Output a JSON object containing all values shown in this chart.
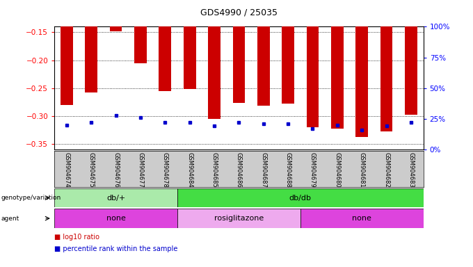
{
  "title": "GDS4990 / 25035",
  "samples": [
    "GSM904674",
    "GSM904675",
    "GSM904676",
    "GSM904677",
    "GSM904678",
    "GSM904684",
    "GSM904685",
    "GSM904686",
    "GSM904687",
    "GSM904688",
    "GSM904679",
    "GSM904680",
    "GSM904681",
    "GSM904682",
    "GSM904683"
  ],
  "log10_ratio": [
    -0.28,
    -0.258,
    -0.148,
    -0.205,
    -0.255,
    -0.252,
    -0.305,
    -0.277,
    -0.281,
    -0.278,
    -0.32,
    -0.322,
    -0.338,
    -0.327,
    -0.298
  ],
  "percentile": [
    20,
    22,
    28,
    26,
    22,
    22,
    19,
    22,
    21,
    21,
    17,
    20,
    16,
    19,
    22
  ],
  "ylim_left": [
    -0.36,
    -0.14
  ],
  "yticks_left": [
    -0.35,
    -0.3,
    -0.25,
    -0.2,
    -0.15
  ],
  "yticks_right": [
    0,
    25,
    50,
    75,
    100
  ],
  "ytick_right_labels": [
    "0%",
    "25%",
    "50%",
    "75%",
    "100%"
  ],
  "bar_color": "#cc0000",
  "marker_color": "#0000cc",
  "genotype_groups": [
    {
      "label": "db/+",
      "start": 0,
      "end": 5,
      "color": "#aaeaaa"
    },
    {
      "label": "db/db",
      "start": 5,
      "end": 15,
      "color": "#44dd44"
    }
  ],
  "agent_groups": [
    {
      "label": "none",
      "start": 0,
      "end": 5,
      "color": "#dd44dd"
    },
    {
      "label": "rosiglitazone",
      "start": 5,
      "end": 10,
      "color": "#eeaaee"
    },
    {
      "label": "none",
      "start": 10,
      "end": 15,
      "color": "#dd44dd"
    }
  ],
  "background_color": "#ffffff",
  "tick_bg_color": "#cccccc",
  "grid_color": "#000000",
  "bar_width": 0.5
}
